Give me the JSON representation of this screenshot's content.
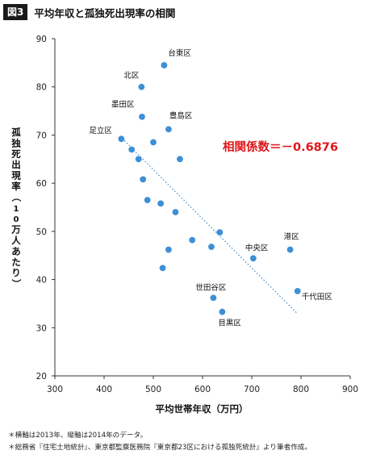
{
  "figure_label": "図3",
  "title": "平均年収と孤独死出現率の相関",
  "correlation_label": "相関係数＝－0.6876",
  "colors": {
    "point": "#3d8fd6",
    "trend": "#3d8fd6",
    "accent": "#e0161a",
    "axis": "#333333"
  },
  "notes": [
    "＊横軸は2013年、縦軸は2014年のデータ。",
    "＊総務省『住宅土地統計』、東京都監察医務院『東京都23区における孤独死統計』より筆者作成。"
  ],
  "chart_data": {
    "type": "scatter",
    "xlabel": "平均世帯年収（万円）",
    "ylabel": "孤独死出現率（10万人あたり）",
    "xlim": [
      300,
      900
    ],
    "ylim": [
      20,
      90
    ],
    "xticks": [
      "300",
      "400",
      "500",
      "600",
      "700",
      "800",
      "900"
    ],
    "yticks": [
      "20",
      "30",
      "40",
      "50",
      "60",
      "70",
      "80",
      "90"
    ],
    "grid": false,
    "points": [
      {
        "x": 522,
        "y": 84.5,
        "label": "台東区"
      },
      {
        "x": 476,
        "y": 80.0,
        "label": "北区"
      },
      {
        "x": 477,
        "y": 73.8,
        "label": "墨田区"
      },
      {
        "x": 531,
        "y": 71.2,
        "label": "豊島区"
      },
      {
        "x": 435,
        "y": 69.2,
        "label": "足立区"
      },
      {
        "x": 500,
        "y": 68.5,
        "label": ""
      },
      {
        "x": 456,
        "y": 67.0,
        "label": ""
      },
      {
        "x": 470,
        "y": 65.0,
        "label": ""
      },
      {
        "x": 554,
        "y": 65.0,
        "label": ""
      },
      {
        "x": 479,
        "y": 60.8,
        "label": ""
      },
      {
        "x": 488,
        "y": 56.5,
        "label": ""
      },
      {
        "x": 515,
        "y": 55.8,
        "label": ""
      },
      {
        "x": 545,
        "y": 54.0,
        "label": ""
      },
      {
        "x": 635,
        "y": 49.8,
        "label": ""
      },
      {
        "x": 579,
        "y": 48.2,
        "label": ""
      },
      {
        "x": 618,
        "y": 46.8,
        "label": ""
      },
      {
        "x": 531,
        "y": 46.2,
        "label": ""
      },
      {
        "x": 778,
        "y": 46.2,
        "label": "港区"
      },
      {
        "x": 703,
        "y": 44.4,
        "label": "中央区"
      },
      {
        "x": 519,
        "y": 42.4,
        "label": ""
      },
      {
        "x": 793,
        "y": 37.6,
        "label": "千代田区"
      },
      {
        "x": 622,
        "y": 36.2,
        "label": "世田谷区"
      },
      {
        "x": 640,
        "y": 33.3,
        "label": "目黒区"
      }
    ],
    "trendline": [
      [
        432,
        69.8
      ],
      [
        792,
        33.0
      ]
    ]
  }
}
